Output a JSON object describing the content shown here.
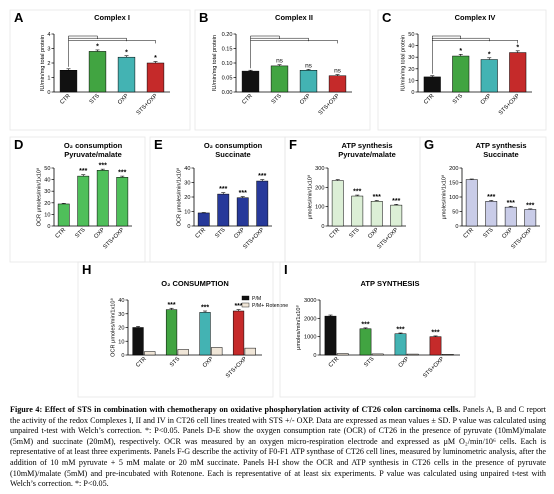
{
  "figure": {
    "caption_bold": "Figure 4: Effect of STS in combination with chemotherapy on oxidative phosphorylation activity of CT26 colon carcinoma cells.",
    "caption_text": " Panels A, B and C report the activity of the redox Complexes I, II and IV in CT26 cell lines treated with STS +/- OXP. Data are expressed as mean values ± SD. P value was calculated using unpaired t-test with Welch’s correction. *: P<0.05. Panels D-E show the oxygen consumption rate (OCR) of CT26 in the presence of pyruvate (10mM)/malate (5mM) and succinate (20mM), respectively. OCR was measured by an oxygen micro-respiration electrode and expressed as μM O₂/min/10⁶ cells. Each is representative of at least three experiments. Panels F-G describe the activity of F0-F1 ATP synthase of CT26 cell lines, measured by luminometric analysis, after the addition of 10 mM pyruvate + 5 mM malate or 20 mM succinate. Panels H-I show the OCR and ATP synthesis in CT26 cells in the presence of pyruvate (10mM)/malate (5mM) and pre-incubated with Rotenone. Each is representative of at least six experiments. P value was calculated using unpaired t-test with Welch’s correction. *: P<0.05."
  },
  "colors": {
    "ctr": "#111111",
    "frame": "#e6e6e6"
  },
  "chart_data": [
    {
      "panel": "A",
      "type": "bar",
      "title": "Complex I",
      "ylabel": "IU/min/mg total protein",
      "categories": [
        "CTR",
        "STS",
        "OXP",
        "STS+OXP"
      ],
      "values": [
        1.5,
        2.8,
        2.4,
        2.0
      ],
      "errors": [
        0.1,
        0.1,
        0.1,
        0.1
      ],
      "ylim": [
        0,
        4
      ],
      "yticks": [
        "0",
        "1",
        "2",
        "3",
        "4"
      ],
      "sig": [
        "",
        "*",
        "*",
        "*"
      ],
      "colors": [
        "#111111",
        "#41a441",
        "#43b3b3",
        "#c52a2a"
      ],
      "bracket": true
    },
    {
      "panel": "B",
      "type": "bar",
      "title": "Complex II",
      "ylabel": "IU/min/mg total protein",
      "categories": [
        "CTR",
        "STS",
        "OXP",
        "STS+OXP"
      ],
      "values": [
        0.072,
        0.09,
        0.075,
        0.056
      ],
      "errors": [
        0.003,
        0.004,
        0.003,
        0.004
      ],
      "ylim": [
        0,
        0.2
      ],
      "yticks": [
        "0.00",
        "0.05",
        "0.10",
        "0.15",
        "0.20"
      ],
      "sig": [
        "",
        "ns",
        "ns",
        "ns"
      ],
      "colors": [
        "#111111",
        "#41a441",
        "#43b3b3",
        "#c52a2a"
      ],
      "bracket": true
    },
    {
      "panel": "C",
      "type": "bar",
      "title": "Complex IV",
      "ylabel": "IU/min/mg total protein",
      "categories": [
        "CTR",
        "STS",
        "OXP",
        "STS+OXP"
      ],
      "values": [
        13,
        31,
        28,
        34
      ],
      "errors": [
        1,
        1.5,
        1.5,
        1.5
      ],
      "ylim": [
        0,
        50
      ],
      "yticks": [
        "0",
        "10",
        "20",
        "30",
        "40",
        "50"
      ],
      "sig": [
        "",
        "*",
        "*",
        "*"
      ],
      "colors": [
        "#111111",
        "#41a441",
        "#43b3b3",
        "#c52a2a"
      ],
      "bracket": true
    },
    {
      "panel": "D",
      "type": "bar",
      "title": "O₂ consumption",
      "title2": "Pyruvate/malate",
      "ylabel": "OCR μmoles/min/1x10⁸",
      "categories": [
        "CTR",
        "STS",
        "OXP",
        "STS+OXP"
      ],
      "values": [
        19,
        43,
        48,
        42
      ],
      "errors": [
        0.5,
        1.2,
        1,
        1
      ],
      "ylim": [
        0,
        50
      ],
      "yticks": [
        "0",
        "10",
        "20",
        "30",
        "40",
        "50"
      ],
      "sig": [
        "",
        "***",
        "***",
        "***"
      ],
      "colors": [
        "#4fbf5a",
        "#4fbf5a",
        "#4fbf5a",
        "#4fbf5a"
      ],
      "bracket": false
    },
    {
      "panel": "E",
      "type": "bar",
      "title": "O₂ consumption",
      "title2": "Succinate",
      "ylabel": "OCR μmoles/min/1x10⁸",
      "categories": [
        "CTR",
        "STS",
        "OXP",
        "STS+OXP"
      ],
      "values": [
        9,
        22,
        19.5,
        31
      ],
      "errors": [
        0.3,
        1,
        0.8,
        1
      ],
      "ylim": [
        0,
        40
      ],
      "yticks": [
        "0",
        "10",
        "20",
        "30",
        "40"
      ],
      "sig": [
        "",
        "***",
        "***",
        "***"
      ],
      "colors": [
        "#27399a",
        "#27399a",
        "#27399a",
        "#27399a"
      ],
      "bracket": false
    },
    {
      "panel": "F",
      "type": "bar",
      "title": "ATP synthesis",
      "title2": "Pyruvate/malate",
      "ylabel": "μmoles/min/1x10⁸",
      "categories": [
        "CTR",
        "STS",
        "OXP",
        "STS+OXP"
      ],
      "values": [
        235,
        155,
        128,
        108
      ],
      "errors": [
        5,
        5,
        4,
        4
      ],
      "ylim": [
        0,
        300
      ],
      "yticks": [
        "0",
        "100",
        "200",
        "300"
      ],
      "sig": [
        "",
        "***",
        "***",
        "***"
      ],
      "colors": [
        "#dcefd6",
        "#dcefd6",
        "#dcefd6",
        "#dcefd6"
      ],
      "bracket": false
    },
    {
      "panel": "G",
      "type": "bar",
      "title": "ATP synthesis",
      "title2": "Succinate",
      "ylabel": "μmoles/min/1x10⁸",
      "categories": [
        "CTR",
        "STS",
        "OXP",
        "STS+OXP"
      ],
      "values": [
        160,
        85,
        65,
        57
      ],
      "errors": [
        2,
        3,
        3,
        2
      ],
      "ylim": [
        0,
        200
      ],
      "yticks": [
        "0",
        "50",
        "100",
        "150",
        "200"
      ],
      "sig": [
        "",
        "***",
        "***",
        "***"
      ],
      "colors": [
        "#c9cce8",
        "#c9cce8",
        "#c9cce8",
        "#c9cce8"
      ],
      "bracket": false
    },
    {
      "panel": "H",
      "type": "bar",
      "title": "O₂ CONSUMPTION",
      "ylabel": "OCR μmoles/min/1x10⁸",
      "categories": [
        "CTR",
        "STS",
        "OXP",
        "STS+OXP"
      ],
      "series": [
        {
          "name": "P/M",
          "values": [
            20,
            33,
            31,
            32
          ],
          "errors": [
            0.8,
            1,
            1,
            1
          ],
          "colors": [
            "#111111",
            "#41a441",
            "#43b3b3",
            "#c52a2a"
          ]
        },
        {
          "name": "P/M+ Rotenone",
          "values": [
            2.5,
            4,
            5.5,
            5
          ],
          "errors": [
            0.3,
            0.3,
            0.3,
            0.3
          ],
          "colors": [
            "#f0e6d8",
            "#f0e6d8",
            "#f0e6d8",
            "#f0e6d8"
          ]
        }
      ],
      "ylim": [
        0,
        40
      ],
      "yticks": [
        "0",
        "10",
        "20",
        "30",
        "40"
      ],
      "sig": [
        "",
        "***",
        "***",
        "***"
      ],
      "legend": "top-right"
    },
    {
      "panel": "I",
      "type": "bar",
      "title": "ATP SYNTHESIS",
      "ylabel": "μmoles/min/1x10⁸",
      "categories": [
        "CTR",
        "STS",
        "OXP",
        "STS+OXP"
      ],
      "series": [
        {
          "name": "P/M",
          "values": [
            2120,
            1430,
            1160,
            1000
          ],
          "errors": [
            60,
            50,
            40,
            40
          ]
        },
        {
          "name": "P/M+ Rotenone",
          "values": [
            80,
            60,
            50,
            40
          ],
          "errors": [
            5,
            5,
            5,
            5
          ]
        }
      ],
      "colors1": [
        "#111111",
        "#41a441",
        "#43b3b3",
        "#c52a2a"
      ],
      "colors2": [
        "#f0e6d8",
        "#f0e6d8",
        "#f0e6d8",
        "#f0e6d8"
      ],
      "ylim": [
        0,
        3000
      ],
      "yticks": [
        "0",
        "1000",
        "2000",
        "3000"
      ],
      "sig": [
        "",
        "***",
        "***",
        "***"
      ]
    }
  ]
}
